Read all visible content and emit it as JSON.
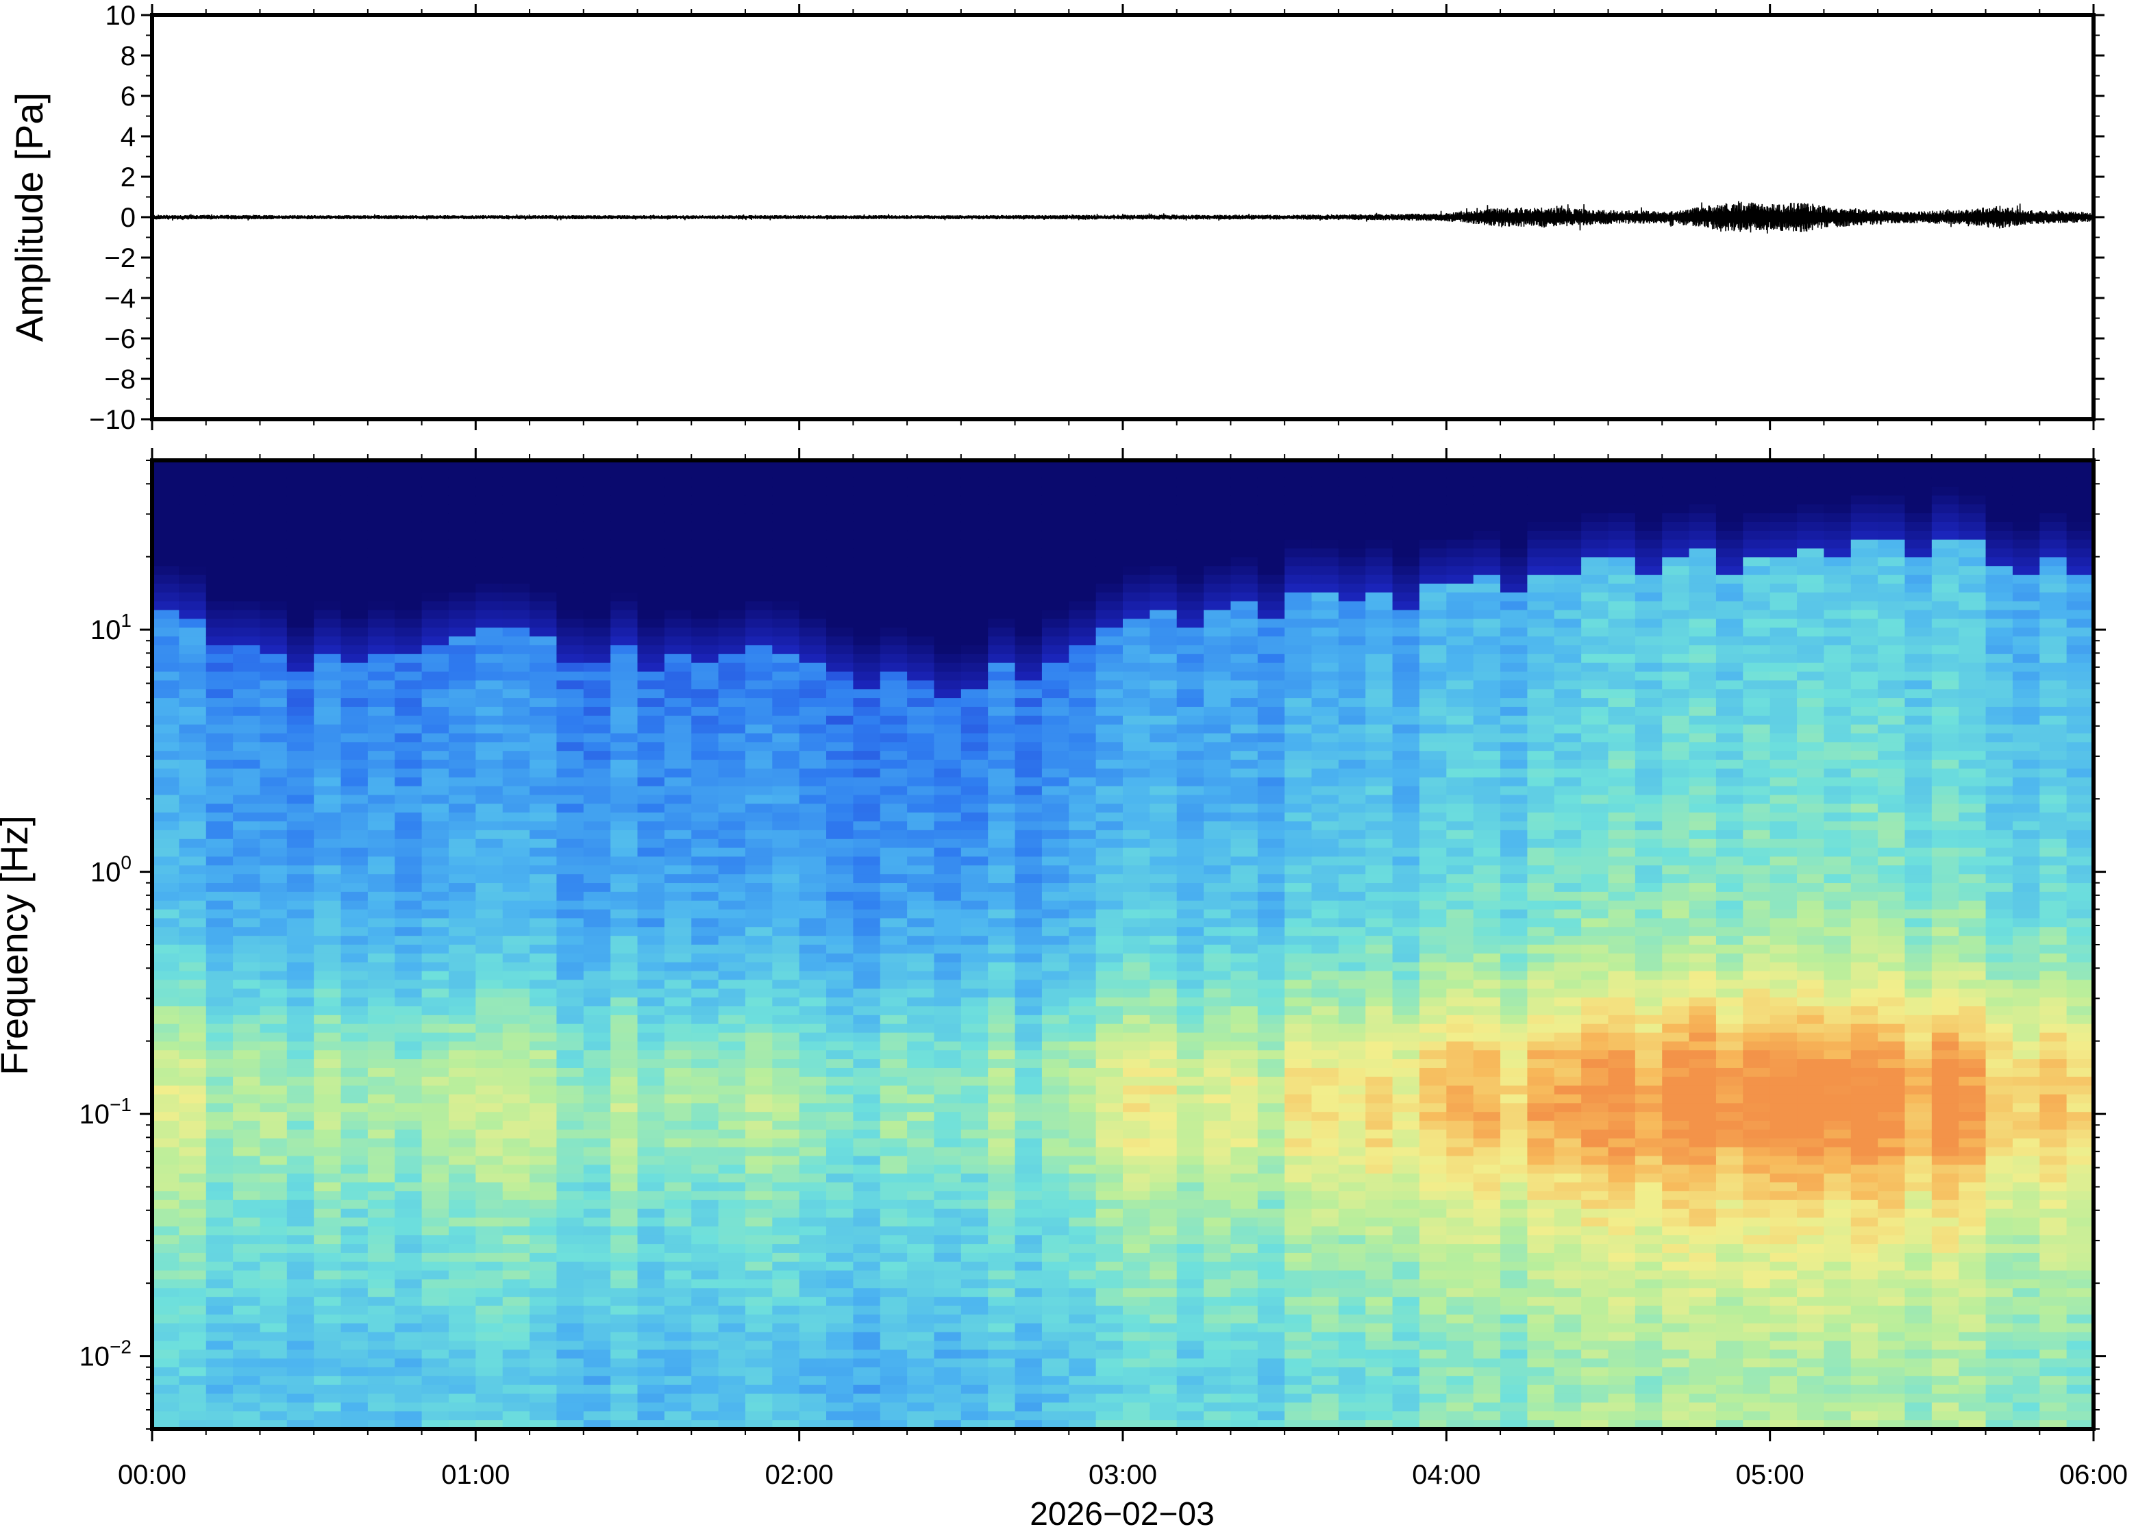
{
  "chart_data": [
    {
      "type": "line",
      "panel": "waveform",
      "ylabel": "Amplitude [Pa]",
      "ylim": [
        -10,
        10
      ],
      "yticks": [
        10,
        8,
        6,
        4,
        2,
        0,
        -2,
        -4,
        -6,
        -8,
        -10
      ],
      "ytick_labels": [
        "10",
        "8",
        "6",
        "4",
        "2",
        "0",
        "−2",
        "−4",
        "−6",
        "−8",
        "−10"
      ],
      "xlim": [
        "00:00",
        "06:00"
      ],
      "line_color": "#000000",
      "envelope": {
        "x_hours": [
          0,
          0.5,
          1.0,
          1.5,
          2.0,
          2.5,
          3.0,
          3.5,
          3.8,
          4.0,
          4.15,
          4.3,
          4.5,
          4.7,
          4.8,
          4.9,
          5.0,
          5.1,
          5.2,
          5.4,
          5.6,
          5.7,
          5.8,
          6.0
        ],
        "amplitude_pa": [
          0.12,
          0.1,
          0.1,
          0.1,
          0.1,
          0.1,
          0.12,
          0.12,
          0.15,
          0.2,
          0.45,
          0.5,
          0.35,
          0.3,
          0.55,
          0.8,
          0.65,
          0.75,
          0.5,
          0.3,
          0.35,
          0.6,
          0.35,
          0.25
        ]
      }
    },
    {
      "type": "heatmap",
      "panel": "spectrogram",
      "ylabel": "Frequency [Hz]",
      "yscale": "log",
      "ylim": [
        0.005,
        50
      ],
      "yticks": [
        0.01,
        0.1,
        1,
        10
      ],
      "ytick_labels": [
        {
          "base": "10",
          "exp": "−2"
        },
        {
          "base": "10",
          "exp": "−1"
        },
        {
          "base": "10",
          "exp": "0"
        },
        {
          "base": "10",
          "exp": "1"
        }
      ],
      "xlabel": "2026−02−03",
      "xlim": [
        "00:00",
        "06:00"
      ],
      "xticks": [
        "00:00",
        "01:00",
        "02:00",
        "03:00",
        "04:00",
        "05:00",
        "06:00"
      ],
      "colormap": [
        "#0a0a6e",
        "#1f2ccf",
        "#2f7df0",
        "#4cb4f0",
        "#6ee0dc",
        "#b8ee9c",
        "#f2ee8c",
        "#f7b85a",
        "#f07a3e"
      ],
      "power_profile": {
        "description_hours": [
          0,
          0.5,
          1.0,
          1.5,
          2.0,
          2.5,
          3.0,
          3.5,
          4.0,
          4.5,
          5.0,
          5.5,
          6.0
        ],
        "upper_cutoff_hz": [
          11,
          7,
          9,
          8,
          8,
          5,
          10,
          13,
          14,
          18,
          20,
          22,
          18
        ],
        "relative_level": [
          0.45,
          0.4,
          0.42,
          0.42,
          0.4,
          0.35,
          0.5,
          0.5,
          0.62,
          0.72,
          0.8,
          0.72,
          0.62
        ]
      }
    }
  ]
}
